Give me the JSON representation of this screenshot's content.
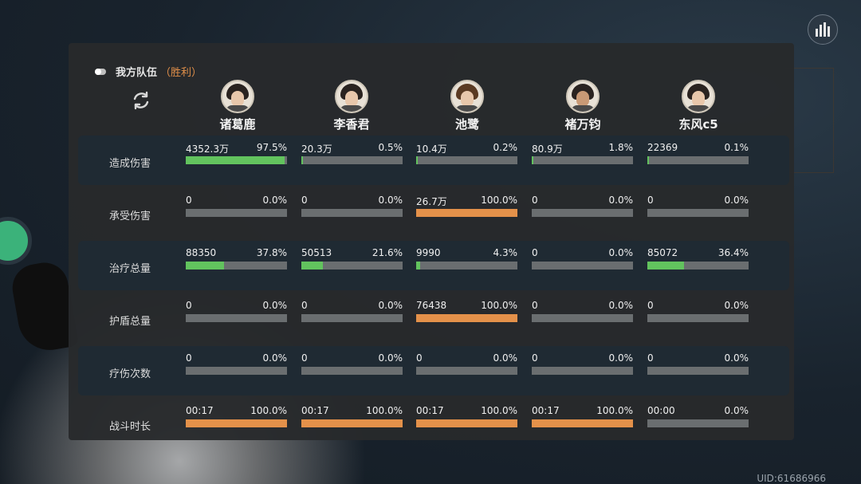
{
  "header": {
    "team_label": "我方队伍",
    "result_label": "（胜利）"
  },
  "uid_text": "UID:61686966",
  "colors": {
    "green_bar": "#62c35e",
    "orange_bar": "#e4914a",
    "track": "#6a6e70"
  },
  "heroes": [
    {
      "name": "诸葛鹿"
    },
    {
      "name": "李香君"
    },
    {
      "name": "池鹭"
    },
    {
      "name": "褚万钧"
    },
    {
      "name": "东风c5"
    }
  ],
  "stats": [
    {
      "label": "造成伤害",
      "color": "green",
      "cells": [
        {
          "value": "4352.3万",
          "pct": "97.5%",
          "fraction": 0.975
        },
        {
          "value": "20.3万",
          "pct": "0.5%",
          "fraction": 0.005
        },
        {
          "value": "10.4万",
          "pct": "0.2%",
          "fraction": 0.002
        },
        {
          "value": "80.9万",
          "pct": "1.8%",
          "fraction": 0.018
        },
        {
          "value": "22369",
          "pct": "0.1%",
          "fraction": 0.001
        }
      ]
    },
    {
      "label": "承受伤害",
      "color": "orange",
      "cells": [
        {
          "value": "0",
          "pct": "0.0%",
          "fraction": 0
        },
        {
          "value": "0",
          "pct": "0.0%",
          "fraction": 0
        },
        {
          "value": "26.7万",
          "pct": "100.0%",
          "fraction": 1.0
        },
        {
          "value": "0",
          "pct": "0.0%",
          "fraction": 0
        },
        {
          "value": "0",
          "pct": "0.0%",
          "fraction": 0
        }
      ]
    },
    {
      "label": "治疗总量",
      "color": "green",
      "cells": [
        {
          "value": "88350",
          "pct": "37.8%",
          "fraction": 0.378
        },
        {
          "value": "50513",
          "pct": "21.6%",
          "fraction": 0.216
        },
        {
          "value": "9990",
          "pct": "4.3%",
          "fraction": 0.043
        },
        {
          "value": "0",
          "pct": "0.0%",
          "fraction": 0
        },
        {
          "value": "85072",
          "pct": "36.4%",
          "fraction": 0.364
        }
      ]
    },
    {
      "label": "护盾总量",
      "color": "orange",
      "cells": [
        {
          "value": "0",
          "pct": "0.0%",
          "fraction": 0
        },
        {
          "value": "0",
          "pct": "0.0%",
          "fraction": 0
        },
        {
          "value": "76438",
          "pct": "100.0%",
          "fraction": 1.0
        },
        {
          "value": "0",
          "pct": "0.0%",
          "fraction": 0
        },
        {
          "value": "0",
          "pct": "0.0%",
          "fraction": 0
        }
      ]
    },
    {
      "label": "疗伤次数",
      "color": "orange",
      "cells": [
        {
          "value": "0",
          "pct": "0.0%",
          "fraction": 0
        },
        {
          "value": "0",
          "pct": "0.0%",
          "fraction": 0
        },
        {
          "value": "0",
          "pct": "0.0%",
          "fraction": 0
        },
        {
          "value": "0",
          "pct": "0.0%",
          "fraction": 0
        },
        {
          "value": "0",
          "pct": "0.0%",
          "fraction": 0
        }
      ]
    },
    {
      "label": "战斗时长",
      "color": "orange",
      "cells": [
        {
          "value": "00:17",
          "pct": "100.0%",
          "fraction": 1.0
        },
        {
          "value": "00:17",
          "pct": "100.0%",
          "fraction": 1.0
        },
        {
          "value": "00:17",
          "pct": "100.0%",
          "fraction": 1.0
        },
        {
          "value": "00:17",
          "pct": "100.0%",
          "fraction": 1.0
        },
        {
          "value": "00:00",
          "pct": "0.0%",
          "fraction": 0
        }
      ]
    }
  ]
}
